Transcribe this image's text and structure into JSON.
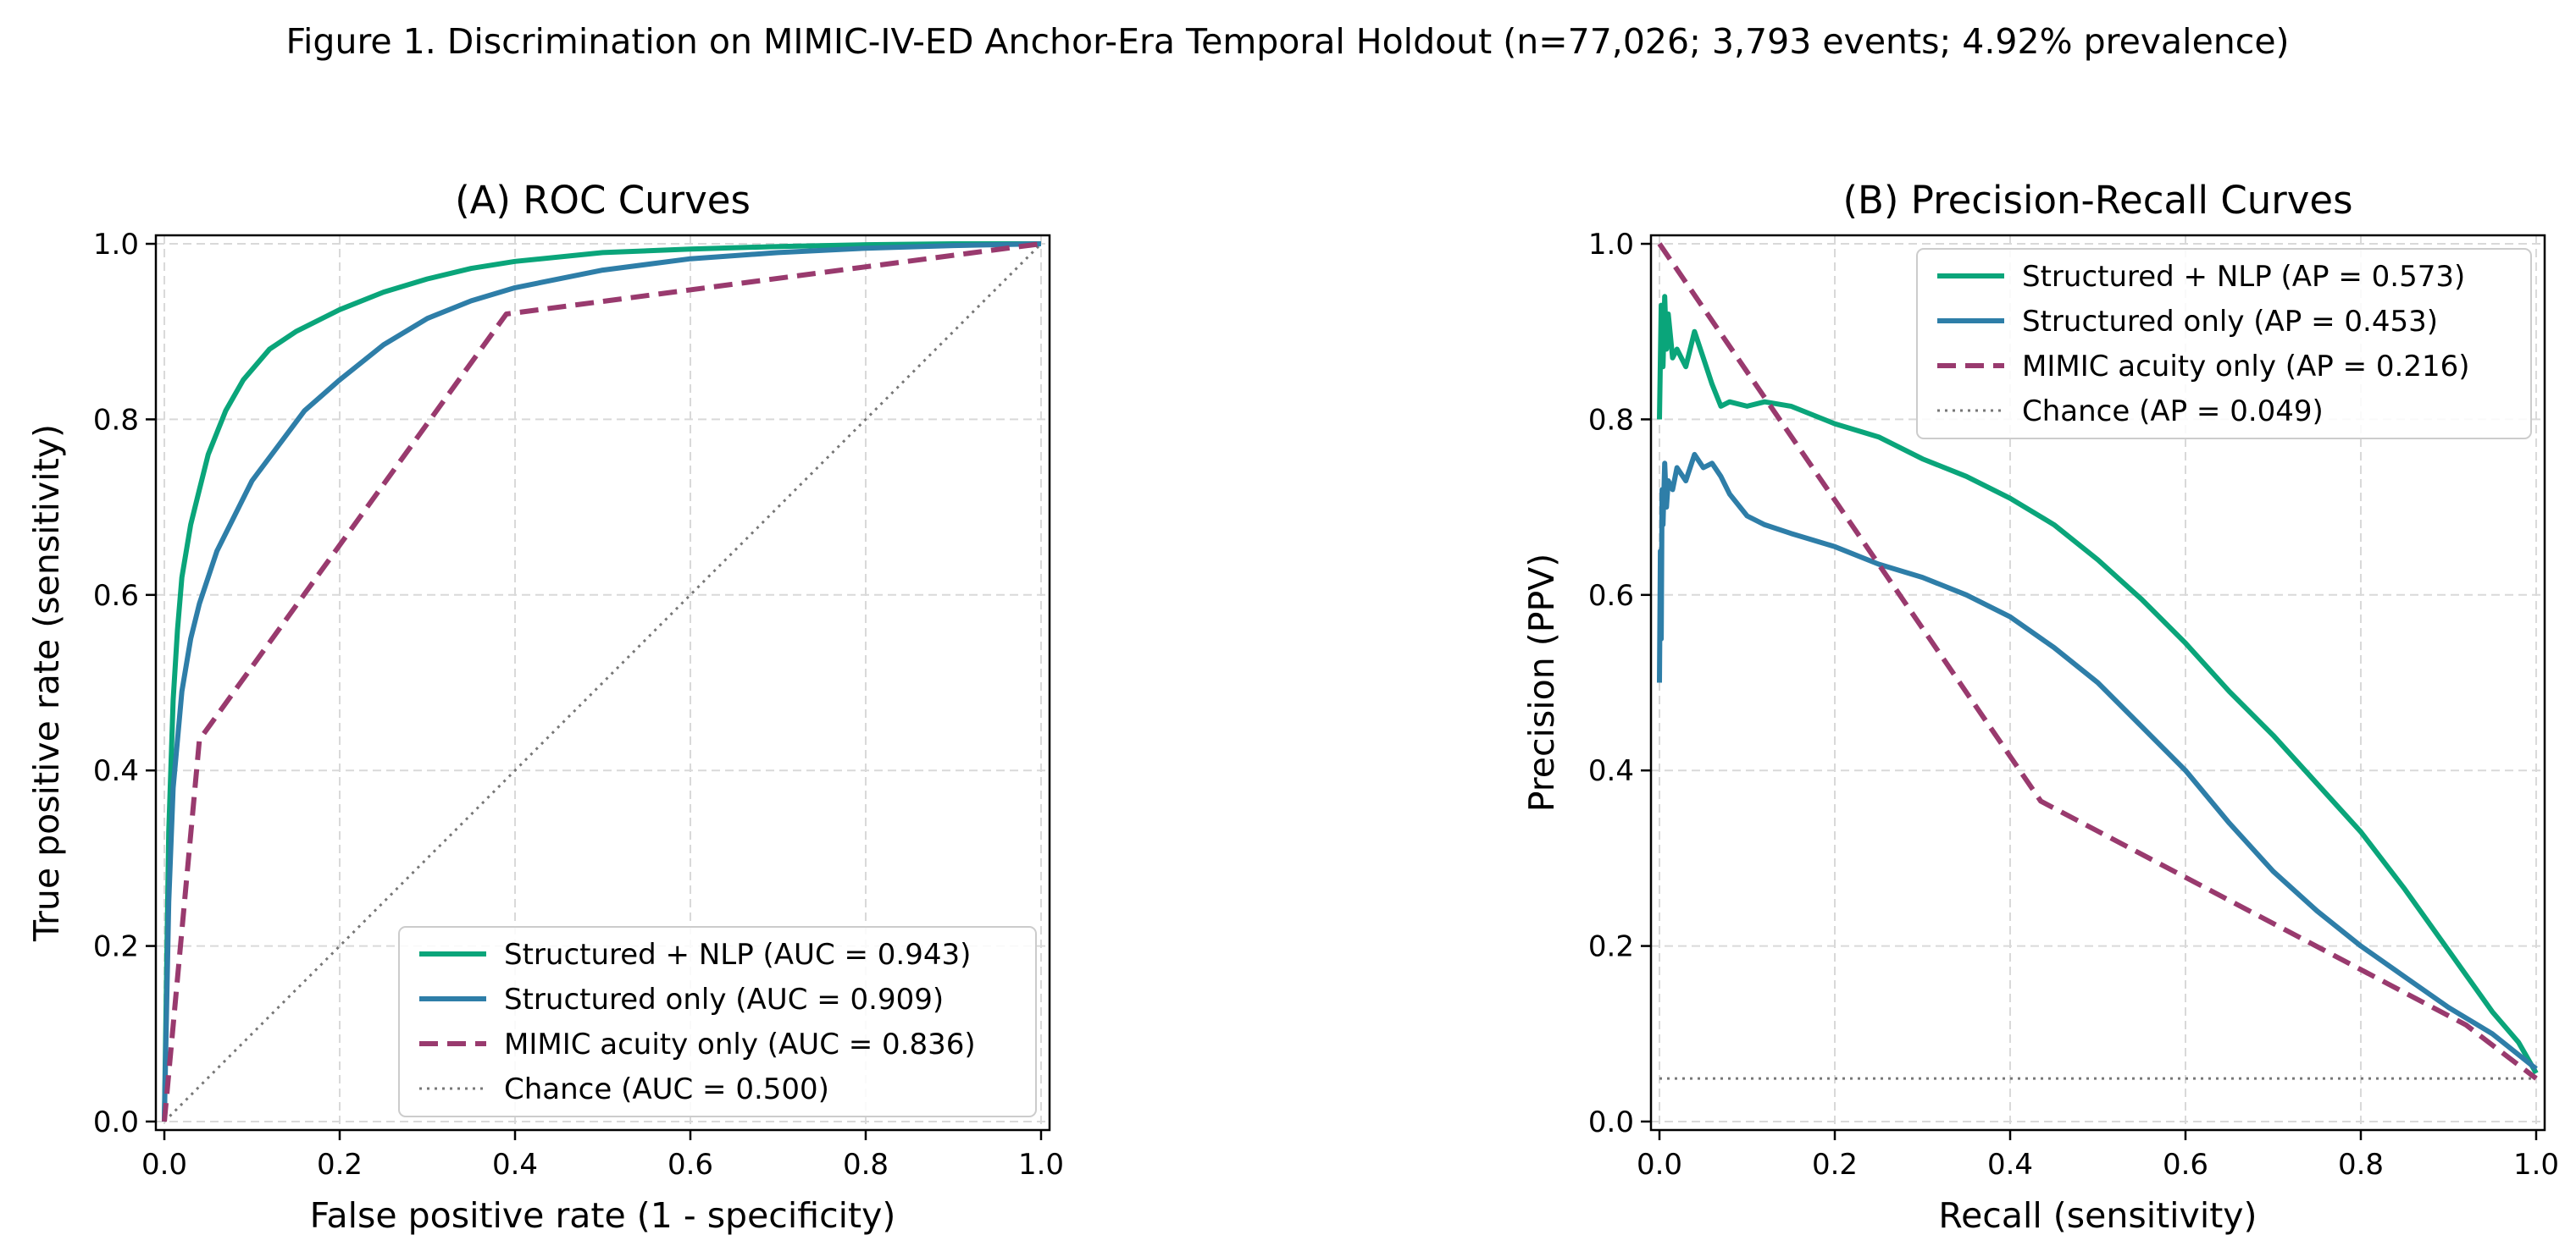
{
  "figure": {
    "suptitle": "Figure 1. Discrimination on MIMIC-IV-ED Anchor-Era Temporal Holdout (n=77,026; 3,793 events; 4.92% prevalence)"
  },
  "colors": {
    "structured_nlp": "#0aa57a",
    "structured_only": "#2e7ea8",
    "mimic_acuity": "#993a6e",
    "chance": "#777777"
  },
  "chart_data": [
    {
      "type": "line",
      "title": "(A) ROC Curves",
      "xlabel": "False positive rate (1 - specificity)",
      "ylabel": "True positive rate (sensitivity)",
      "xlim": [
        0,
        1
      ],
      "ylim": [
        0,
        1
      ],
      "xticks": [
        "0.0",
        "0.2",
        "0.4",
        "0.6",
        "0.8",
        "1.0"
      ],
      "yticks": [
        "0.0",
        "0.2",
        "0.4",
        "0.6",
        "0.8",
        "1.0"
      ],
      "grid": true,
      "legend_position": "lower-right",
      "series": [
        {
          "name": "Structured + NLP (AUC = 0.943)",
          "style": "solid",
          "color": "structured_nlp",
          "x": [
            0,
            0.005,
            0.01,
            0.015,
            0.02,
            0.03,
            0.04,
            0.05,
            0.07,
            0.09,
            0.12,
            0.15,
            0.2,
            0.25,
            0.3,
            0.35,
            0.4,
            0.5,
            0.6,
            0.7,
            0.8,
            0.9,
            1.0
          ],
          "y": [
            0,
            0.33,
            0.48,
            0.56,
            0.62,
            0.68,
            0.72,
            0.76,
            0.81,
            0.845,
            0.88,
            0.9,
            0.925,
            0.945,
            0.96,
            0.972,
            0.98,
            0.99,
            0.994,
            0.997,
            0.999,
            1.0,
            1.0
          ]
        },
        {
          "name": "Structured only (AUC = 0.909)",
          "style": "solid",
          "color": "structured_only",
          "x": [
            0,
            0.005,
            0.01,
            0.02,
            0.03,
            0.04,
            0.06,
            0.08,
            0.1,
            0.13,
            0.16,
            0.2,
            0.25,
            0.3,
            0.35,
            0.4,
            0.5,
            0.6,
            0.7,
            0.8,
            0.9,
            1.0
          ],
          "y": [
            0,
            0.25,
            0.38,
            0.49,
            0.55,
            0.59,
            0.65,
            0.69,
            0.73,
            0.77,
            0.81,
            0.845,
            0.885,
            0.915,
            0.935,
            0.95,
            0.97,
            0.983,
            0.99,
            0.995,
            0.998,
            1.0
          ]
        },
        {
          "name": "MIMIC acuity only (AUC = 0.836)",
          "style": "dashed",
          "color": "mimic_acuity",
          "x": [
            0,
            0.04,
            0.39,
            1.0
          ],
          "y": [
            0,
            0.435,
            0.92,
            1.0
          ]
        },
        {
          "name": "Chance (AUC = 0.500)",
          "style": "dotted",
          "color": "chance",
          "x": [
            0,
            1
          ],
          "y": [
            0,
            1
          ]
        }
      ]
    },
    {
      "type": "line",
      "title": "(B) Precision-Recall Curves",
      "xlabel": "Recall (sensitivity)",
      "ylabel": "Precision (PPV)",
      "xlim": [
        0,
        1
      ],
      "ylim": [
        0,
        1
      ],
      "xticks": [
        "0.0",
        "0.2",
        "0.4",
        "0.6",
        "0.8",
        "1.0"
      ],
      "yticks": [
        "0.0",
        "0.2",
        "0.4",
        "0.6",
        "0.8",
        "1.0"
      ],
      "grid": true,
      "legend_position": "upper-right",
      "series": [
        {
          "name": "Structured + NLP (AP = 0.573)",
          "style": "solid",
          "color": "structured_nlp",
          "x": [
            0.0,
            0.002,
            0.004,
            0.006,
            0.008,
            0.01,
            0.015,
            0.02,
            0.03,
            0.04,
            0.05,
            0.06,
            0.07,
            0.08,
            0.1,
            0.12,
            0.15,
            0.2,
            0.25,
            0.3,
            0.35,
            0.4,
            0.45,
            0.5,
            0.55,
            0.6,
            0.65,
            0.7,
            0.75,
            0.8,
            0.85,
            0.9,
            0.95,
            0.98,
            1.0
          ],
          "y": [
            0.8,
            0.93,
            0.86,
            0.94,
            0.88,
            0.92,
            0.87,
            0.88,
            0.86,
            0.9,
            0.87,
            0.84,
            0.815,
            0.82,
            0.815,
            0.82,
            0.815,
            0.795,
            0.78,
            0.755,
            0.735,
            0.71,
            0.68,
            0.64,
            0.595,
            0.545,
            0.49,
            0.44,
            0.385,
            0.33,
            0.265,
            0.195,
            0.125,
            0.09,
            0.055
          ]
        },
        {
          "name": "Structured only (AP = 0.453)",
          "style": "solid",
          "color": "structured_only",
          "x": [
            0.0,
            0.001,
            0.002,
            0.003,
            0.004,
            0.006,
            0.008,
            0.01,
            0.015,
            0.02,
            0.03,
            0.04,
            0.05,
            0.06,
            0.07,
            0.08,
            0.1,
            0.12,
            0.15,
            0.2,
            0.25,
            0.3,
            0.35,
            0.4,
            0.45,
            0.5,
            0.55,
            0.6,
            0.65,
            0.7,
            0.75,
            0.8,
            0.85,
            0.9,
            0.95,
            1.0
          ],
          "y": [
            0.5,
            0.65,
            0.55,
            0.72,
            0.68,
            0.75,
            0.7,
            0.73,
            0.72,
            0.745,
            0.73,
            0.76,
            0.745,
            0.75,
            0.735,
            0.715,
            0.69,
            0.68,
            0.67,
            0.655,
            0.635,
            0.62,
            0.6,
            0.575,
            0.54,
            0.5,
            0.45,
            0.4,
            0.34,
            0.285,
            0.24,
            0.2,
            0.165,
            0.13,
            0.1,
            0.06
          ]
        },
        {
          "name": "MIMIC acuity only (AP = 0.216)",
          "style": "dashed",
          "color": "mimic_acuity",
          "x": [
            0.0,
            0.435,
            0.92,
            1.0
          ],
          "y": [
            1.0,
            0.365,
            0.11,
            0.049
          ]
        },
        {
          "name": "Chance (AP = 0.049)",
          "style": "dotted",
          "color": "chance",
          "x": [
            0,
            1
          ],
          "y": [
            0.049,
            0.049
          ]
        }
      ]
    }
  ]
}
